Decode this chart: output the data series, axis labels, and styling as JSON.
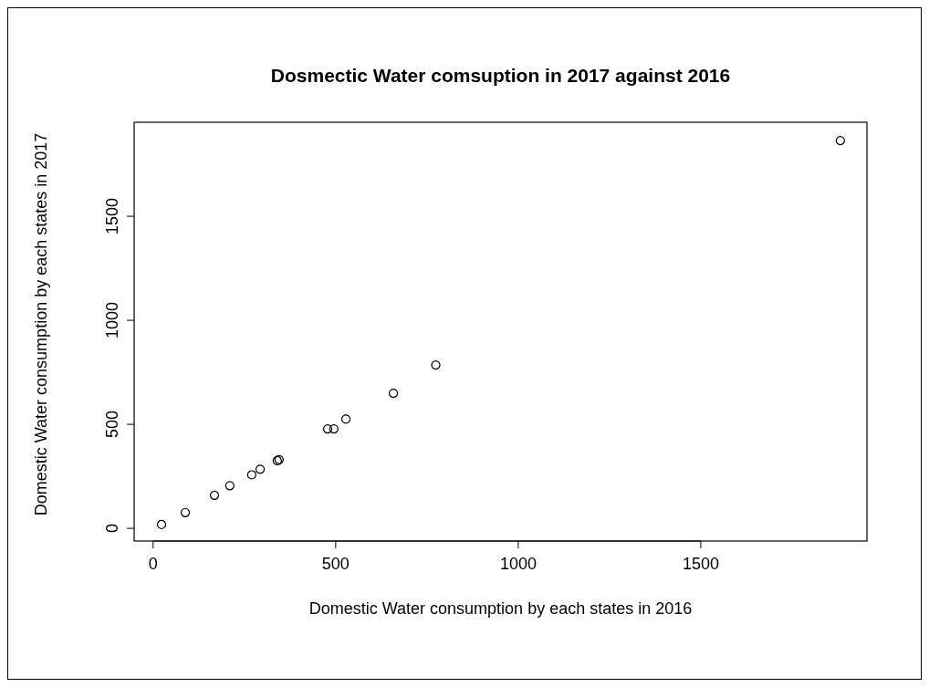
{
  "chart_data": {
    "type": "scatter",
    "title": "Dosmectic Water comsuption in 2017 against 2016",
    "xlabel": "Domestic Water consumption by each states in 2016",
    "ylabel": "Domestic Water consumption by each states in 2017",
    "x": [
      23,
      88,
      168,
      210,
      270,
      293,
      340,
      345,
      478,
      495,
      528,
      658,
      774,
      1882
    ],
    "values": [
      18,
      76,
      159,
      205,
      257,
      284,
      325,
      330,
      478,
      478,
      525,
      649,
      785,
      1864
    ],
    "color": "#000000",
    "marker": "circle",
    "xlim": [
      -52,
      1955
    ],
    "ylim": [
      -61,
      1952
    ],
    "xticks": [
      0,
      500,
      1000,
      1500
    ],
    "yticks": [
      0,
      500,
      1000,
      1500
    ],
    "grid": false
  }
}
